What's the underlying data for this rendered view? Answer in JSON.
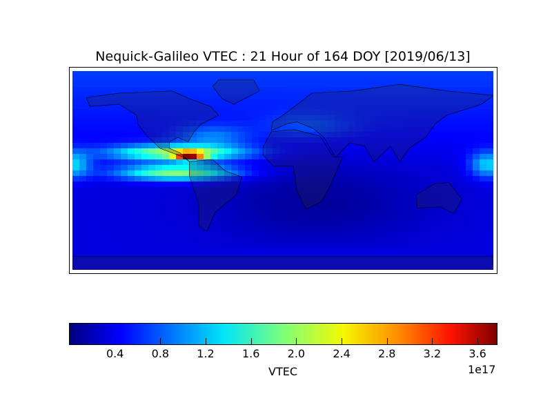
{
  "title": "Nequick-Galileo VTEC : 21 Hour of 164 DOY [2019/06/13]",
  "chart_data": {
    "type": "heatmap",
    "title": "Nequick-Galileo VTEC : 21 Hour of 164 DOY [2019/06/13]",
    "projection": "equirectangular world map with coastlines and country borders",
    "colormap": "jet",
    "colorbar": {
      "label": "VTEC",
      "exponent_label": "1e17",
      "ticks": [
        "0.4",
        "0.8",
        "1.2",
        "1.6",
        "2.0",
        "2.4",
        "2.8",
        "3.2",
        "3.6"
      ],
      "range": [
        0.0,
        3.77
      ],
      "orientation": "horizontal"
    },
    "features": [
      {
        "region": "Central America / Caribbean",
        "approx_value": 3.7
      },
      {
        "region": "Northern tropics band over Americas and Atlantic",
        "approx_value": 2.3
      },
      {
        "region": "Southern tropics band over South America",
        "approx_value": 1.8
      },
      {
        "region": "Western Pacific near equator",
        "approx_value": 1.3
      },
      {
        "region": "Southern Atlantic and Indian Ocean",
        "approx_value": 0.1
      }
    ]
  }
}
